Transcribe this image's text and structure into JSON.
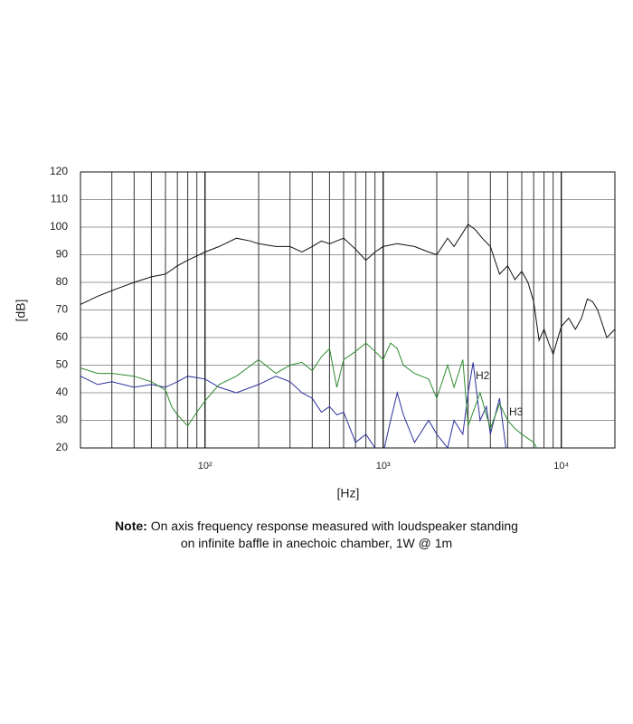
{
  "chart_data": {
    "type": "line",
    "y_label": "[dB]",
    "x_label": "[Hz]",
    "xlim": [
      20,
      20000
    ],
    "ylim": [
      20,
      120
    ],
    "log_x": true,
    "grid": "minor",
    "xticks": [
      {
        "value": 100,
        "label": "10²"
      },
      {
        "value": 1000,
        "label": "10³"
      },
      {
        "value": 10000,
        "label": "10⁴"
      }
    ],
    "yticks": [
      20,
      30,
      40,
      50,
      60,
      70,
      80,
      90,
      100,
      110,
      120
    ],
    "series": [
      {
        "color": "#111111",
        "x": [
          20,
          25,
          30,
          40,
          50,
          60,
          70,
          80,
          100,
          120,
          150,
          180,
          200,
          250,
          300,
          350,
          400,
          450,
          500,
          600,
          700,
          800,
          900,
          1000,
          1200,
          1500,
          1800,
          2000,
          2300,
          2500,
          3000,
          3300,
          3600,
          4000,
          4500,
          5000,
          5500,
          6000,
          6500,
          7000,
          7500,
          8000,
          8500,
          9000,
          10000,
          11000,
          12000,
          13000,
          14000,
          15000,
          16000,
          18000,
          20000
        ],
        "values": [
          72,
          75,
          77,
          80,
          82,
          83,
          86,
          88,
          91,
          93,
          96,
          95,
          94,
          93,
          93,
          91,
          93,
          95,
          94,
          96,
          92,
          88,
          91,
          93,
          94,
          93,
          91,
          90,
          96,
          93,
          101,
          99,
          96,
          93,
          83,
          86,
          81,
          84,
          80,
          73,
          59,
          63,
          58,
          54,
          64,
          67,
          63,
          67,
          74,
          73,
          70,
          60,
          63
        ]
      },
      {
        "name": "H2",
        "color": "#2b2f9c",
        "x": [
          20,
          25,
          30,
          40,
          50,
          60,
          70,
          80,
          100,
          120,
          150,
          200,
          250,
          300,
          350,
          400,
          450,
          500,
          550,
          600,
          700,
          800,
          900,
          1000,
          1100,
          1200,
          1300,
          1500,
          1800,
          2000,
          2300,
          2500,
          2800,
          3000,
          3200,
          3500,
          3800,
          4000,
          4500,
          5000
        ],
        "values": [
          46,
          43,
          44,
          42,
          43,
          42,
          44,
          46,
          45,
          42,
          40,
          43,
          46,
          44,
          40,
          38,
          33,
          35,
          32,
          33,
          22,
          25,
          20,
          18,
          30,
          40,
          32,
          22,
          30,
          25,
          20,
          30,
          25,
          40,
          51,
          30,
          35,
          25,
          38,
          15
        ]
      },
      {
        "name": "H3",
        "color": "#2e8b2e",
        "x": [
          20,
          25,
          30,
          40,
          50,
          60,
          65,
          70,
          80,
          90,
          100,
          120,
          150,
          200,
          250,
          300,
          350,
          400,
          450,
          500,
          550,
          600,
          700,
          800,
          900,
          1000,
          1100,
          1200,
          1300,
          1500,
          1800,
          2000,
          2300,
          2500,
          2800,
          3000,
          3500,
          4000,
          4500,
          5000,
          5500,
          6000,
          7000,
          8000
        ],
        "values": [
          49,
          47,
          47,
          46,
          44,
          41,
          35,
          32,
          28,
          33,
          37,
          43,
          46,
          52,
          47,
          50,
          51,
          48,
          53,
          56,
          42,
          52,
          55,
          58,
          55,
          52,
          58,
          56,
          50,
          47,
          45,
          38,
          50,
          42,
          52,
          28,
          40,
          27,
          36,
          30,
          27,
          25,
          22,
          15
        ]
      }
    ],
    "note": {
      "label": "Note:",
      "text": "On axis frequency response measured with loudspeaker standing on infinite baffle in anechoic chamber, 1W @ 1m"
    }
  }
}
